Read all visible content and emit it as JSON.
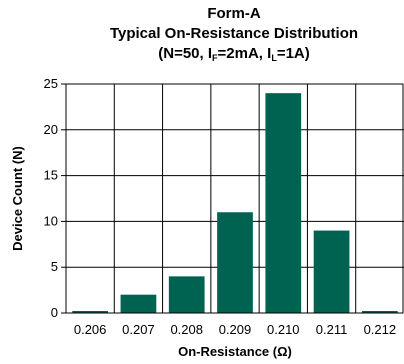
{
  "chart_data": {
    "type": "bar",
    "title_line1": "Form-A",
    "title_line2": "Typical On-Resistance Distribution",
    "title_line3": {
      "prefix": "(N=50, I",
      "sub1": "F",
      "mid": "=2mA, I",
      "sub2": "L",
      "suffix": "=1A)"
    },
    "xlabel": "On-Resistance (Ω)",
    "ylabel": "Device Count (N)",
    "categories": [
      "0.206",
      "0.207",
      "0.208",
      "0.209",
      "0.210",
      "0.211",
      "0.212"
    ],
    "values": [
      0,
      2,
      4,
      11,
      24,
      9,
      0
    ],
    "ylim": [
      0,
      25
    ],
    "yticks": [
      0,
      5,
      10,
      15,
      20,
      25
    ],
    "grid": true,
    "bar_color": "#006352"
  }
}
